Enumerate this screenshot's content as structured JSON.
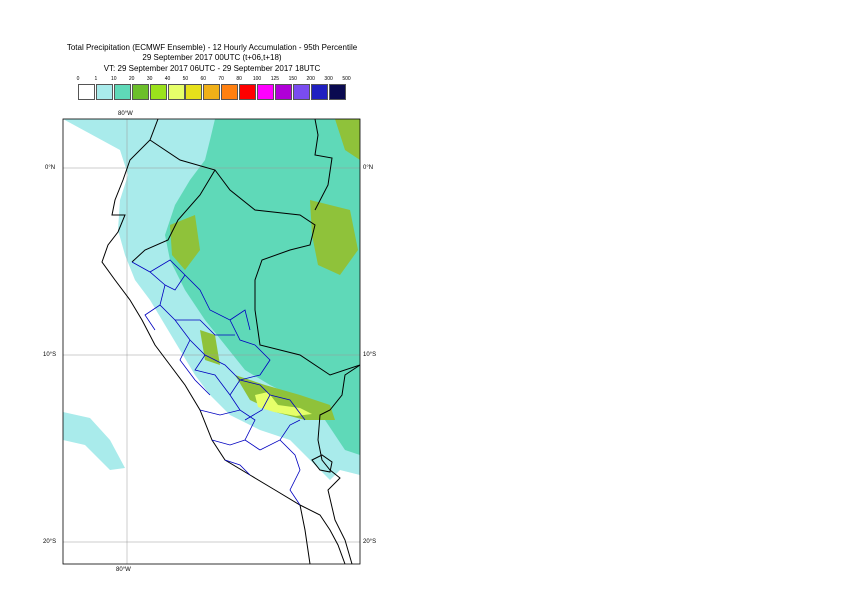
{
  "title": {
    "line1": "Total Precipitation (ECMWF Ensemble) - 12 Hourly Accumulation - 95th Percentile",
    "line2": "29 September 2017 00UTC (t+06,t+18)",
    "line3": "VT: 29 September 2017 06UTC - 29 September 2017 18UTC"
  },
  "legend": {
    "labels": [
      "0",
      "1",
      "10",
      "20",
      "30",
      "40",
      "50",
      "60",
      "70",
      "80",
      "100",
      "125",
      "150",
      "200",
      "300",
      "500"
    ],
    "colors": [
      "#ffffff",
      "#a9ebeb",
      "#5fd9b8",
      "#6cbf2a",
      "#9be21c",
      "#e6ff6a",
      "#e6e01a",
      "#f0b018",
      "#ff8010",
      "#ff0000",
      "#ff00ff",
      "#b000d8",
      "#7a4cf0",
      "#2020c0",
      "#0a0a50"
    ]
  },
  "axes": {
    "lon_top": "80°W",
    "lon_bottom": "80°W",
    "lat_0": "0°N",
    "lat_10": "10°S",
    "lat_20": "20°S"
  },
  "map_colors": {
    "light_cyan": "#a9ebeb",
    "mid_green": "#5fd9b8",
    "olive": "#8fc23a",
    "yellow": "#e6ff6a",
    "border_country": "#000000",
    "border_region": "#0000c0"
  }
}
